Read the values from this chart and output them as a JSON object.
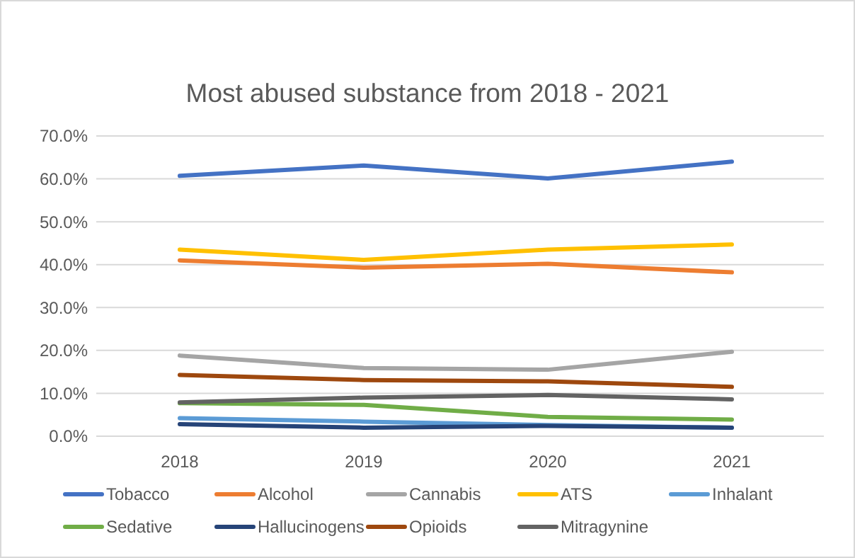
{
  "chart_data": {
    "type": "line",
    "title": "Most abused substance from 2018 - 2021",
    "categories": [
      "2018",
      "2019",
      "2020",
      "2021"
    ],
    "series": [
      {
        "name": "Tobacco",
        "color": "#4472c4",
        "values": [
          60.7,
          63.1,
          60.1,
          64.0
        ]
      },
      {
        "name": "Alcohol",
        "color": "#ed7d31",
        "values": [
          41.0,
          39.3,
          40.2,
          38.2
        ]
      },
      {
        "name": "Cannabis",
        "color": "#a5a5a5",
        "values": [
          18.8,
          15.9,
          15.5,
          19.7
        ]
      },
      {
        "name": "ATS",
        "color": "#ffc000",
        "values": [
          43.5,
          41.1,
          43.5,
          44.7
        ]
      },
      {
        "name": "Inhalant",
        "color": "#5b9bd5",
        "values": [
          4.2,
          3.4,
          2.6,
          2.0
        ]
      },
      {
        "name": "Sedative",
        "color": "#70ad47",
        "values": [
          7.7,
          7.3,
          4.5,
          3.9
        ]
      },
      {
        "name": "Hallucinogens",
        "color": "#264478",
        "values": [
          2.8,
          2.0,
          2.4,
          2.0
        ]
      },
      {
        "name": "Opioids",
        "color": "#9e480e",
        "values": [
          14.3,
          13.1,
          12.8,
          11.5
        ]
      },
      {
        "name": "Mitragynine",
        "color": "#636363",
        "values": [
          7.9,
          9.0,
          9.6,
          8.6
        ]
      }
    ],
    "ylim": [
      0,
      70
    ],
    "yticks": [
      {
        "value": 0,
        "label": "0.0%"
      },
      {
        "value": 10,
        "label": "10.0%"
      },
      {
        "value": 20,
        "label": "20.0%"
      },
      {
        "value": 30,
        "label": "30.0%"
      },
      {
        "value": 40,
        "label": "40.0%"
      },
      {
        "value": 50,
        "label": "50.0%"
      },
      {
        "value": 60,
        "label": "60.0%"
      },
      {
        "value": 70,
        "label": "70.0%"
      }
    ],
    "grid": "y",
    "legend": "bottom",
    "marker": "none",
    "line_style": "solid"
  }
}
